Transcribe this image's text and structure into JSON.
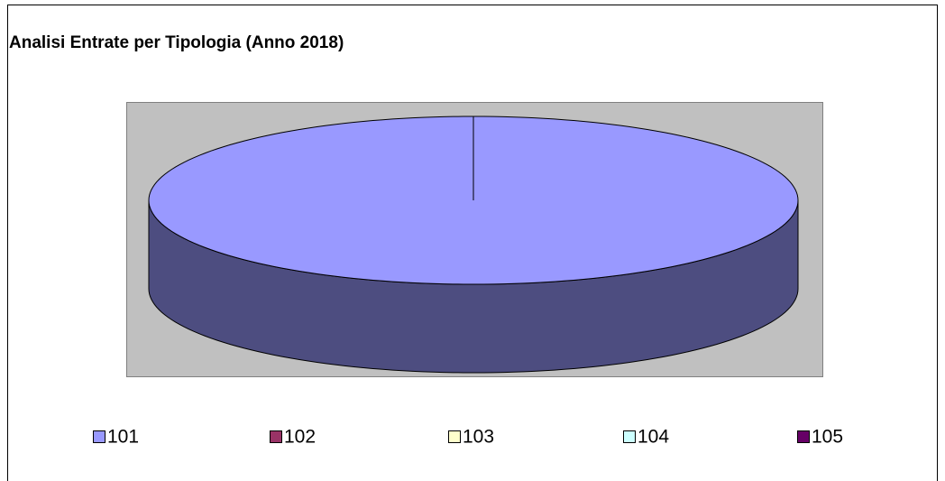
{
  "chart_data": {
    "type": "pie",
    "title": "Analisi Entrate per Tipologia (Anno 2018)",
    "categories": [
      "101",
      "102",
      "103",
      "104",
      "105"
    ],
    "values": [
      100,
      0,
      0,
      0,
      0
    ],
    "colors": [
      "#9999ff",
      "#993366",
      "#ffffcc",
      "#ccffff",
      "#660066"
    ],
    "legend": "bottom"
  }
}
